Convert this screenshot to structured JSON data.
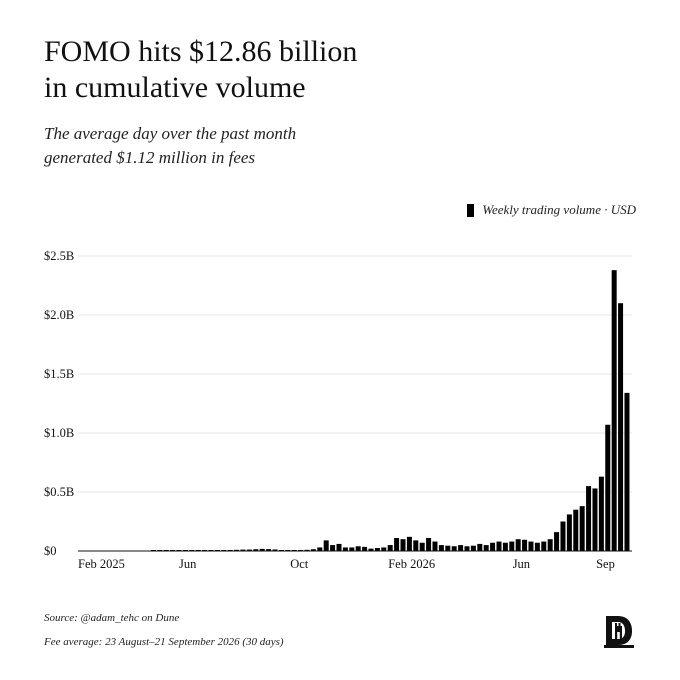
{
  "header": {
    "title_line1": "FOMO hits $12.86 billion",
    "title_line2": "in cumulative volume",
    "subtitle_line1": "The average day over the past month",
    "subtitle_line2": "generated $1.12 million in fees"
  },
  "legend": {
    "label": "Weekly trading volume · USD"
  },
  "footer": {
    "source": "Source: @adam_tehc on Dune",
    "note": "Fee average: 23 August–21 September 2026 (30 days)"
  },
  "logo": {
    "icon": "fortress-d-logo"
  },
  "colors": {
    "bar": "#000000",
    "grid": "#e6e6e6",
    "baseline": "#111111"
  },
  "chart_data": {
    "type": "bar",
    "title": "",
    "xlabel": "",
    "ylabel": "",
    "ylim": [
      0,
      2.5
    ],
    "yticks": [
      0,
      0.5,
      1.0,
      1.5,
      2.0,
      2.5
    ],
    "ytick_labels": [
      "$0",
      "$0.5B",
      "$1.0B",
      "$1.5B",
      "$2.0B",
      "$2.5B"
    ],
    "x_axis": "weekly dates, Feb 2025 – Sep 2026",
    "xtick_labels": [
      "Feb 2025",
      "Jun",
      "Oct",
      "Feb 2026",
      "Jun",
      "Sep"
    ],
    "xtick_dates": [
      "2025-02-01",
      "2025-06-01",
      "2025-10-01",
      "2026-02-01",
      "2026-06-01",
      "2026-09-01"
    ],
    "x_range": [
      "2025-02-01",
      "2026-09-30"
    ],
    "grid": "horizontal",
    "legend_position": "top-right",
    "series": [
      {
        "name": "Weekly trading volume · USD",
        "unit": "USD billions",
        "points": [
          [
            "2025-04-21",
            0.004
          ],
          [
            "2025-04-28",
            0.004
          ],
          [
            "2025-05-05",
            0.004
          ],
          [
            "2025-05-12",
            0.005
          ],
          [
            "2025-05-19",
            0.005
          ],
          [
            "2025-05-26",
            0.004
          ],
          [
            "2025-06-02",
            0.004
          ],
          [
            "2025-06-09",
            0.005
          ],
          [
            "2025-06-16",
            0.004
          ],
          [
            "2025-06-23",
            0.005
          ],
          [
            "2025-06-30",
            0.006
          ],
          [
            "2025-07-07",
            0.008
          ],
          [
            "2025-07-14",
            0.007
          ],
          [
            "2025-07-21",
            0.01
          ],
          [
            "2025-07-28",
            0.012
          ],
          [
            "2025-08-04",
            0.012
          ],
          [
            "2025-08-11",
            0.015
          ],
          [
            "2025-08-18",
            0.018
          ],
          [
            "2025-08-25",
            0.016
          ],
          [
            "2025-09-01",
            0.013
          ],
          [
            "2025-09-08",
            0.006
          ],
          [
            "2025-09-15",
            0.005
          ],
          [
            "2025-09-22",
            0.006
          ],
          [
            "2025-09-29",
            0.008
          ],
          [
            "2025-10-06",
            0.01
          ],
          [
            "2025-10-13",
            0.015
          ],
          [
            "2025-10-20",
            0.03
          ],
          [
            "2025-10-27",
            0.09
          ],
          [
            "2025-11-03",
            0.05
          ],
          [
            "2025-11-10",
            0.06
          ],
          [
            "2025-11-17",
            0.03
          ],
          [
            "2025-11-24",
            0.03
          ],
          [
            "2025-12-01",
            0.04
          ],
          [
            "2025-12-08",
            0.035
          ],
          [
            "2025-12-15",
            0.02
          ],
          [
            "2025-12-22",
            0.025
          ],
          [
            "2025-12-29",
            0.03
          ],
          [
            "2026-01-05",
            0.05
          ],
          [
            "2026-01-12",
            0.11
          ],
          [
            "2026-01-19",
            0.1
          ],
          [
            "2026-01-26",
            0.12
          ],
          [
            "2026-02-02",
            0.09
          ],
          [
            "2026-02-09",
            0.07
          ],
          [
            "2026-02-16",
            0.11
          ],
          [
            "2026-02-23",
            0.08
          ],
          [
            "2026-03-02",
            0.05
          ],
          [
            "2026-03-09",
            0.045
          ],
          [
            "2026-03-16",
            0.04
          ],
          [
            "2026-03-23",
            0.05
          ],
          [
            "2026-03-30",
            0.04
          ],
          [
            "2026-04-06",
            0.045
          ],
          [
            "2026-04-13",
            0.06
          ],
          [
            "2026-04-20",
            0.05
          ],
          [
            "2026-04-27",
            0.07
          ],
          [
            "2026-05-04",
            0.08
          ],
          [
            "2026-05-11",
            0.07
          ],
          [
            "2026-05-18",
            0.08
          ],
          [
            "2026-05-25",
            0.1
          ],
          [
            "2026-06-01",
            0.095
          ],
          [
            "2026-06-08",
            0.08
          ],
          [
            "2026-06-15",
            0.07
          ],
          [
            "2026-06-22",
            0.08
          ],
          [
            "2026-06-29",
            0.1
          ],
          [
            "2026-07-06",
            0.16
          ],
          [
            "2026-07-13",
            0.25
          ],
          [
            "2026-07-20",
            0.31
          ],
          [
            "2026-07-27",
            0.35
          ],
          [
            "2026-08-03",
            0.38
          ],
          [
            "2026-08-10",
            0.55
          ],
          [
            "2026-08-17",
            0.53
          ],
          [
            "2026-08-24",
            0.63
          ],
          [
            "2026-08-31",
            1.07
          ],
          [
            "2026-09-07",
            2.38
          ],
          [
            "2026-09-14",
            2.1
          ],
          [
            "2026-09-21",
            1.34
          ]
        ]
      }
    ]
  }
}
